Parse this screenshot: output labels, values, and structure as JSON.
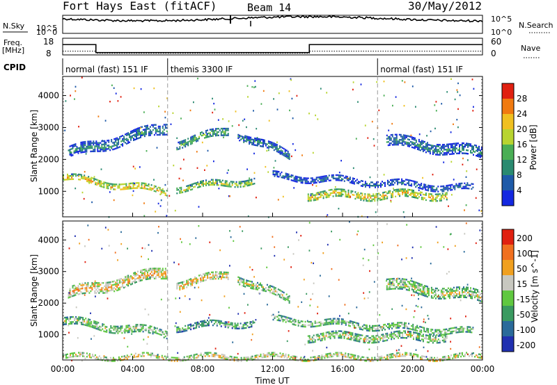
{
  "header": {
    "station": "Fort Hays East (fitACF)",
    "beam": "Beam 14",
    "date": "30/May/2012"
  },
  "noise_panel": {
    "left_label": "N.Sky",
    "left_ticks": [
      "10^5",
      "10^0"
    ],
    "right_ticks": [
      "10^5",
      "10^0"
    ],
    "right_label": "N.Search"
  },
  "freq_panel": {
    "label_line1": "Freq.",
    "label_line2": "[MHz]",
    "left_ticks": [
      "18",
      "8"
    ],
    "right_ticks": [
      "60",
      "0"
    ],
    "right_label": "Nave",
    "freq_steps": [
      {
        "t": 0,
        "value": 14.2
      },
      {
        "t": 1.9,
        "value": 9.4
      },
      {
        "t": 14.1,
        "value": 14.2
      },
      {
        "t": 24,
        "value": 14.2
      }
    ]
  },
  "cpid": {
    "label": "CPID",
    "segments": [
      {
        "label": "normal (fast) 151 IF",
        "start": 0,
        "end": 6
      },
      {
        "label": "themis 3300 IF",
        "start": 6,
        "end": 18
      },
      {
        "label": "normal (fast) 151 IF",
        "start": 18,
        "end": 24
      }
    ]
  },
  "chart_data": [
    {
      "type": "heatmap",
      "title": "",
      "xlabel": "Time UT",
      "ylabel": "Slant Range [km]",
      "x_ticks": [
        "00:00",
        "04:00",
        "08:00",
        "12:00",
        "16:00",
        "20:00",
        "00:00"
      ],
      "xlim": [
        0,
        24
      ],
      "ylim": [
        200,
        4600
      ],
      "y_ticks": [
        1000,
        2000,
        3000,
        4000
      ],
      "colorbar": {
        "label": "Power [dB]",
        "ticks": [
          "4",
          "8",
          "12",
          "16",
          "20",
          "24",
          "28"
        ],
        "colors": [
          "#1428e0",
          "#1e5aa8",
          "#2a8a70",
          "#4aae55",
          "#b8d430",
          "#f0c020",
          "#f07a10",
          "#e02010"
        ]
      },
      "echo_bands": [
        {
          "t_start": 0,
          "t_end": 6,
          "range_start": 1450,
          "range_end": 1000,
          "width": 180,
          "level": 5
        },
        {
          "t_start": 0.3,
          "t_end": 6,
          "range_start": 2200,
          "range_end": 3000,
          "width": 350,
          "level": 2
        },
        {
          "t_start": 6.5,
          "t_end": 11,
          "range_start": 1100,
          "range_end": 1350,
          "width": 200,
          "level": 4
        },
        {
          "t_start": 6.5,
          "t_end": 9.5,
          "range_start": 2500,
          "range_end": 2900,
          "width": 250,
          "level": 3
        },
        {
          "t_start": 10,
          "t_end": 13,
          "range_start": 2800,
          "range_end": 2100,
          "width": 250,
          "level": 2
        },
        {
          "t_start": 12,
          "t_end": 23.5,
          "range_start": 1500,
          "range_end": 1100,
          "width": 160,
          "level": 2
        },
        {
          "t_start": 14,
          "t_end": 22,
          "range_start": 900,
          "range_end": 900,
          "width": 220,
          "level": 5
        },
        {
          "t_start": 18.5,
          "t_end": 24,
          "range_start": 2600,
          "range_end": 2200,
          "width": 350,
          "level": 2
        }
      ]
    },
    {
      "type": "heatmap",
      "title": "",
      "xlabel": "Time UT",
      "ylabel": "Slant Range [km]",
      "x_ticks": [
        "00:00",
        "04:00",
        "08:00",
        "12:00",
        "16:00",
        "20:00",
        "00:00"
      ],
      "xlim": [
        0,
        24
      ],
      "ylim": [
        200,
        4600
      ],
      "y_ticks": [
        1000,
        2000,
        3000,
        4000
      ],
      "colorbar": {
        "label": "Velocity [m s^-1]",
        "ticks": [
          "200",
          "100",
          "50",
          "15",
          "-15",
          "-50",
          "-100",
          "-200"
        ],
        "colors": [
          "#2030b0",
          "#2a6a9a",
          "#3a9a60",
          "#60c840",
          "#c8c8c0",
          "#f0a020",
          "#f07020",
          "#e02010"
        ]
      },
      "echo_bands": [
        {
          "t_start": 0,
          "t_end": 6,
          "range_start": 1450,
          "range_end": 1050,
          "width": 220,
          "level": 4
        },
        {
          "t_start": 0.3,
          "t_end": 6,
          "range_start": 2300,
          "range_end": 3000,
          "width": 350,
          "level": 5
        },
        {
          "t_start": 6.5,
          "t_end": 11,
          "range_start": 1250,
          "range_end": 1400,
          "width": 180,
          "level": 3
        },
        {
          "t_start": 6.5,
          "t_end": 9.5,
          "range_start": 2600,
          "range_end": 2900,
          "width": 250,
          "level": 5
        },
        {
          "t_start": 10,
          "t_end": 13,
          "range_start": 2800,
          "range_end": 2100,
          "width": 250,
          "level": 4
        },
        {
          "t_start": 12,
          "t_end": 23.5,
          "range_start": 1500,
          "range_end": 1100,
          "width": 160,
          "level": 4
        },
        {
          "t_start": 14,
          "t_end": 22,
          "range_start": 950,
          "range_end": 950,
          "width": 220,
          "level": 4
        },
        {
          "t_start": 18.5,
          "t_end": 24,
          "range_start": 2600,
          "range_end": 2200,
          "width": 350,
          "level": 4
        },
        {
          "t_start": 0,
          "t_end": 24,
          "range_start": 300,
          "range_end": 300,
          "width": 150,
          "level": 5
        }
      ]
    }
  ]
}
